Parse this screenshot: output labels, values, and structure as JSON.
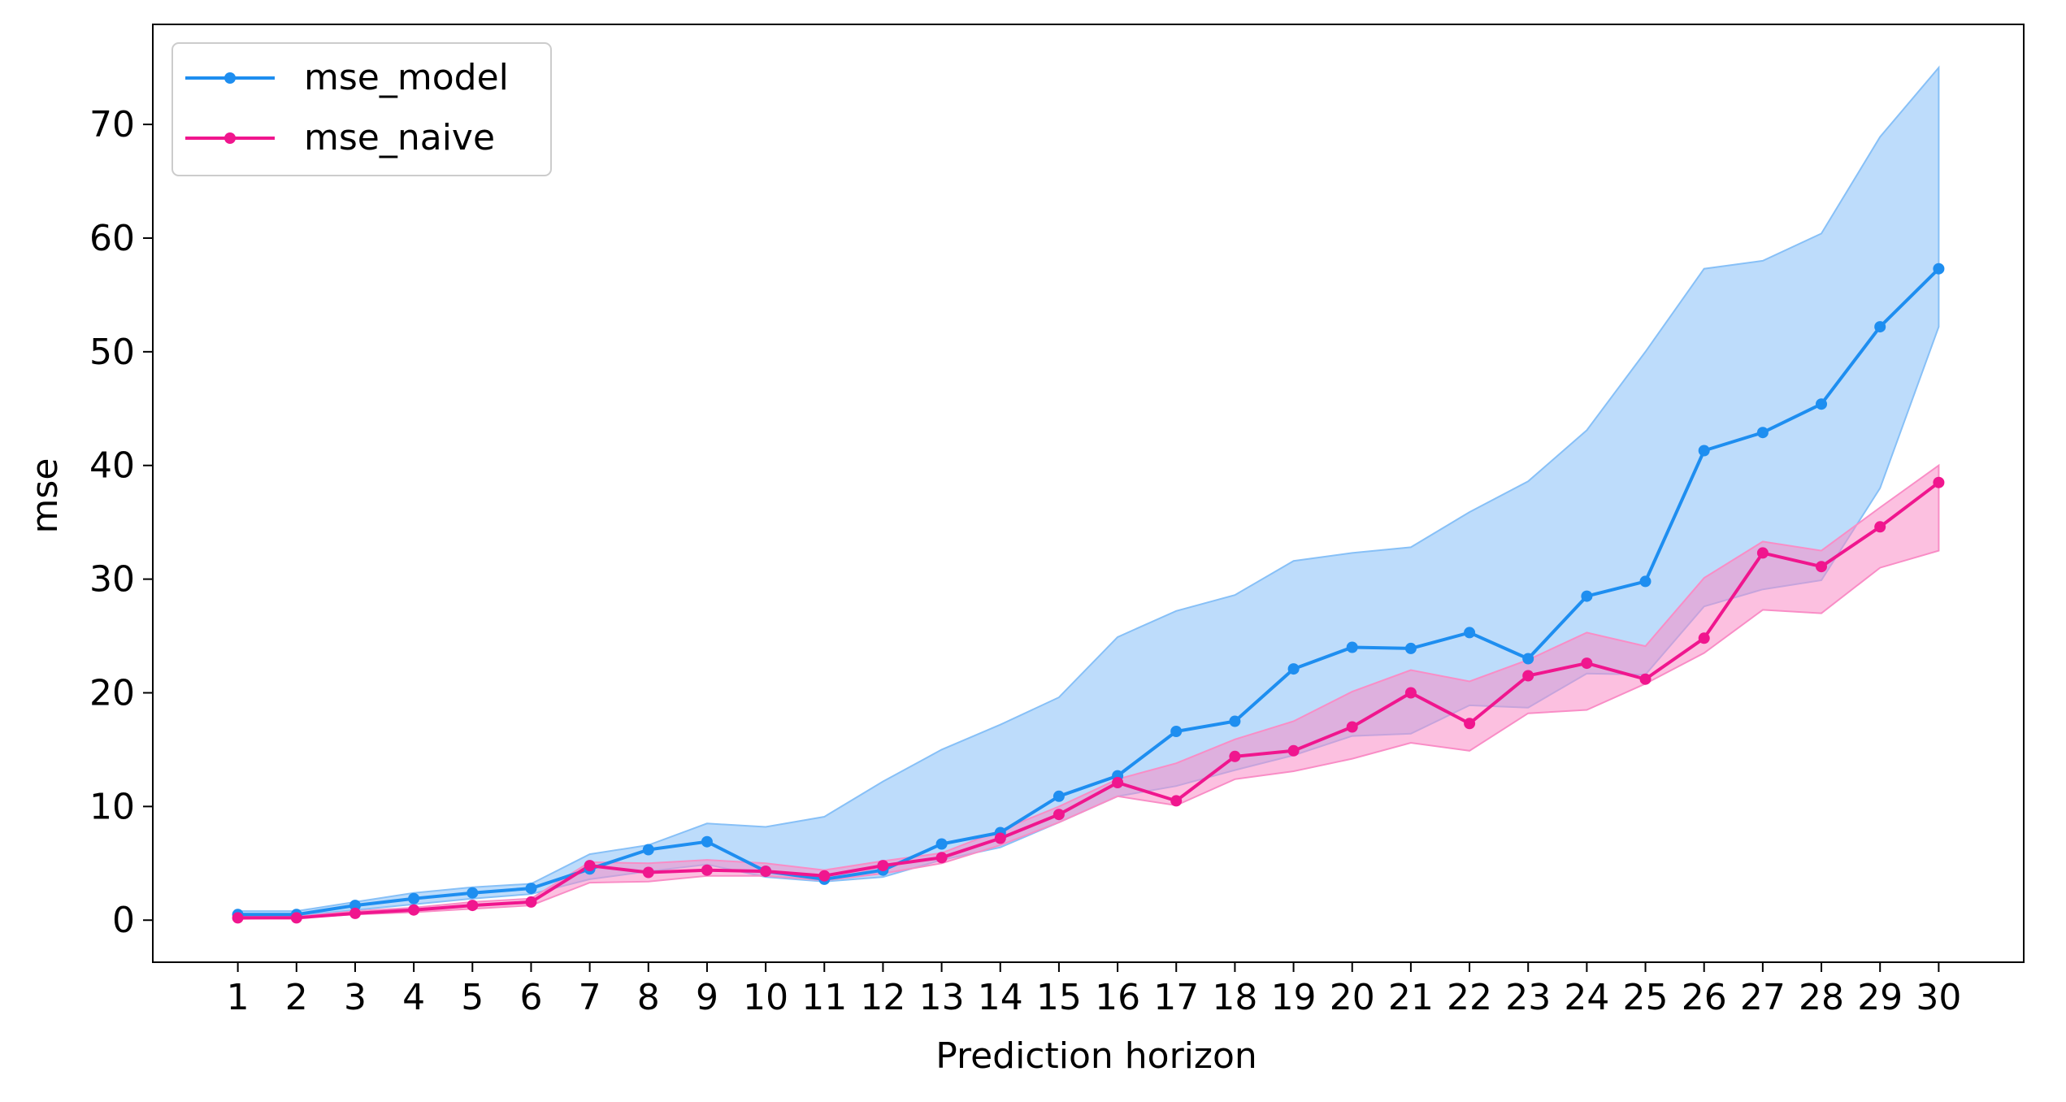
{
  "chart_data": {
    "type": "line",
    "xlabel": "Prediction horizon",
    "ylabel": "mse",
    "x": [
      1,
      2,
      3,
      4,
      5,
      6,
      7,
      8,
      9,
      10,
      11,
      12,
      13,
      14,
      15,
      16,
      17,
      18,
      19,
      20,
      21,
      22,
      23,
      24,
      25,
      26,
      27,
      28,
      29,
      30
    ],
    "x_ticks": [
      "1",
      "2",
      "3",
      "4",
      "5",
      "6",
      "7",
      "8",
      "9",
      "10",
      "11",
      "12",
      "13",
      "14",
      "15",
      "16",
      "17",
      "18",
      "19",
      "20",
      "21",
      "22",
      "23",
      "24",
      "25",
      "26",
      "27",
      "28",
      "29",
      "30"
    ],
    "y_ticks": [
      "0",
      "10",
      "20",
      "30",
      "40",
      "50",
      "60",
      "70"
    ],
    "ylim": [
      -3.7,
      78.8
    ],
    "xlim": [
      -0.45,
      31.45
    ],
    "grid": false,
    "legend_position": "upper left",
    "series": [
      {
        "name": "mse_model",
        "color": "#1e8ef0",
        "band_color": "#87c0f7",
        "values": [
          0.5,
          0.5,
          1.3,
          1.9,
          2.4,
          2.8,
          4.5,
          6.2,
          6.9,
          4.3,
          3.6,
          4.4,
          6.7,
          7.7,
          10.9,
          12.7,
          16.6,
          17.5,
          22.1,
          24.0,
          23.9,
          25.3,
          23.0,
          28.5,
          29.8,
          41.3,
          42.9,
          45.4,
          52.2,
          57.3
        ],
        "lower": [
          0.3,
          0.4,
          0.9,
          1.4,
          1.9,
          2.3,
          3.6,
          4.3,
          4.9,
          3.8,
          3.4,
          3.8,
          5.3,
          6.4,
          8.6,
          10.9,
          11.8,
          13.2,
          14.5,
          16.2,
          16.4,
          18.9,
          18.7,
          21.7,
          21.6,
          27.6,
          29.1,
          29.9,
          38.0,
          52.2
        ],
        "upper": [
          0.8,
          0.8,
          1.6,
          2.4,
          2.9,
          3.2,
          5.8,
          6.6,
          8.5,
          8.2,
          9.1,
          12.2,
          15.0,
          17.2,
          19.6,
          24.9,
          27.2,
          28.6,
          31.6,
          32.3,
          32.8,
          35.9,
          38.6,
          43.1,
          50.0,
          57.3,
          58.0,
          60.4,
          68.9,
          75.0
        ]
      },
      {
        "name": "mse_naive",
        "color": "#f0168e",
        "band_color": "#f98dc6",
        "values": [
          0.2,
          0.2,
          0.6,
          0.9,
          1.3,
          1.6,
          4.8,
          4.2,
          4.4,
          4.3,
          3.9,
          4.8,
          5.5,
          7.2,
          9.3,
          12.1,
          10.5,
          14.4,
          14.9,
          17.0,
          20.0,
          17.3,
          21.5,
          22.6,
          21.2,
          24.8,
          32.3,
          31.1,
          34.6,
          38.5
        ],
        "lower": [
          0.1,
          0.2,
          0.5,
          0.7,
          1.0,
          1.3,
          3.3,
          3.4,
          3.9,
          3.9,
          3.5,
          4.1,
          5.0,
          6.6,
          8.6,
          10.9,
          10.1,
          12.4,
          13.1,
          14.2,
          15.6,
          14.9,
          18.2,
          18.5,
          20.8,
          23.5,
          27.3,
          27.0,
          31.0,
          32.5
        ],
        "upper": [
          0.3,
          0.3,
          0.8,
          1.1,
          1.6,
          1.9,
          5.1,
          5.0,
          5.3,
          5.0,
          4.4,
          5.2,
          5.9,
          7.9,
          10.0,
          12.4,
          13.8,
          15.9,
          17.5,
          20.1,
          22.0,
          21.0,
          22.9,
          25.3,
          24.1,
          30.1,
          33.3,
          32.5,
          36.3,
          40.0
        ]
      }
    ]
  }
}
